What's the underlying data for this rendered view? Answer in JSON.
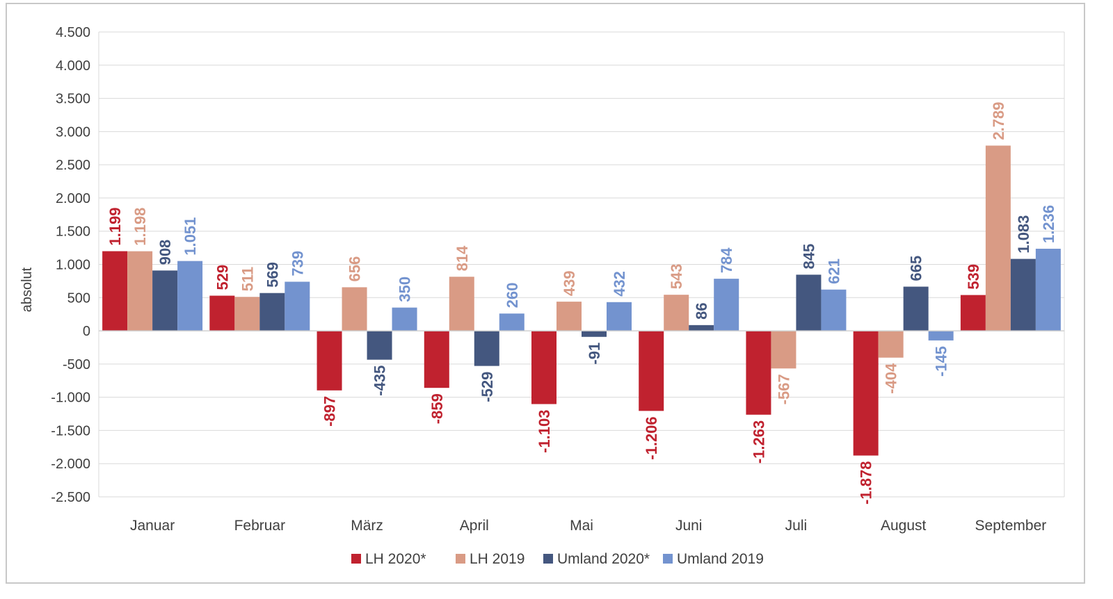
{
  "chart_data": {
    "type": "bar",
    "categories": [
      "Januar",
      "Februar",
      "März",
      "April",
      "Mai",
      "Juni",
      "Juli",
      "August",
      "September"
    ],
    "series": [
      {
        "name": "LH 2020*",
        "color": "#c0222f",
        "values": [
          1199,
          529,
          -897,
          -859,
          -1103,
          -1206,
          -1263,
          -1878,
          539
        ],
        "labels": [
          "1.199",
          "529",
          "-897",
          "-859",
          "-1.103",
          "-1.206",
          "-1.263",
          "-1.878",
          "539"
        ]
      },
      {
        "name": "LH 2019",
        "color": "#d99b85",
        "values": [
          1198,
          511,
          656,
          814,
          439,
          543,
          -567,
          -404,
          2789
        ],
        "labels": [
          "1.198",
          "511",
          "656",
          "814",
          "439",
          "543",
          "-567",
          "-404",
          "2.789"
        ]
      },
      {
        "name": "Umland 2020*",
        "color": "#44577f",
        "values": [
          908,
          569,
          -435,
          -529,
          -91,
          86,
          845,
          665,
          1083
        ],
        "labels": [
          "908",
          "569",
          "-435",
          "-529",
          "-91",
          "86",
          "845",
          "665",
          "1.083"
        ]
      },
      {
        "name": "Umland 2019",
        "color": "#7393cf",
        "values": [
          1051,
          739,
          350,
          260,
          432,
          784,
          621,
          -145,
          1236
        ],
        "labels": [
          "1.051",
          "739",
          "350",
          "260",
          "432",
          "784",
          "621",
          "-145",
          "1.236"
        ]
      }
    ],
    "ylabel": "absolut",
    "xlabel": "",
    "ylim": [
      -2500,
      4500
    ],
    "yticks": [
      4500,
      4000,
      3500,
      3000,
      2500,
      2000,
      1500,
      1000,
      500,
      0,
      -500,
      -1000,
      -1500,
      -2000,
      -2500
    ],
    "ytick_labels": [
      "4.500",
      "4.000",
      "3.500",
      "3.000",
      "2.500",
      "2.000",
      "1.500",
      "1.000",
      "500",
      "0",
      "-500",
      "-1.000",
      "-1.500",
      "-2.000",
      "-2.500"
    ],
    "grid": true,
    "legend_position": "bottom"
  }
}
